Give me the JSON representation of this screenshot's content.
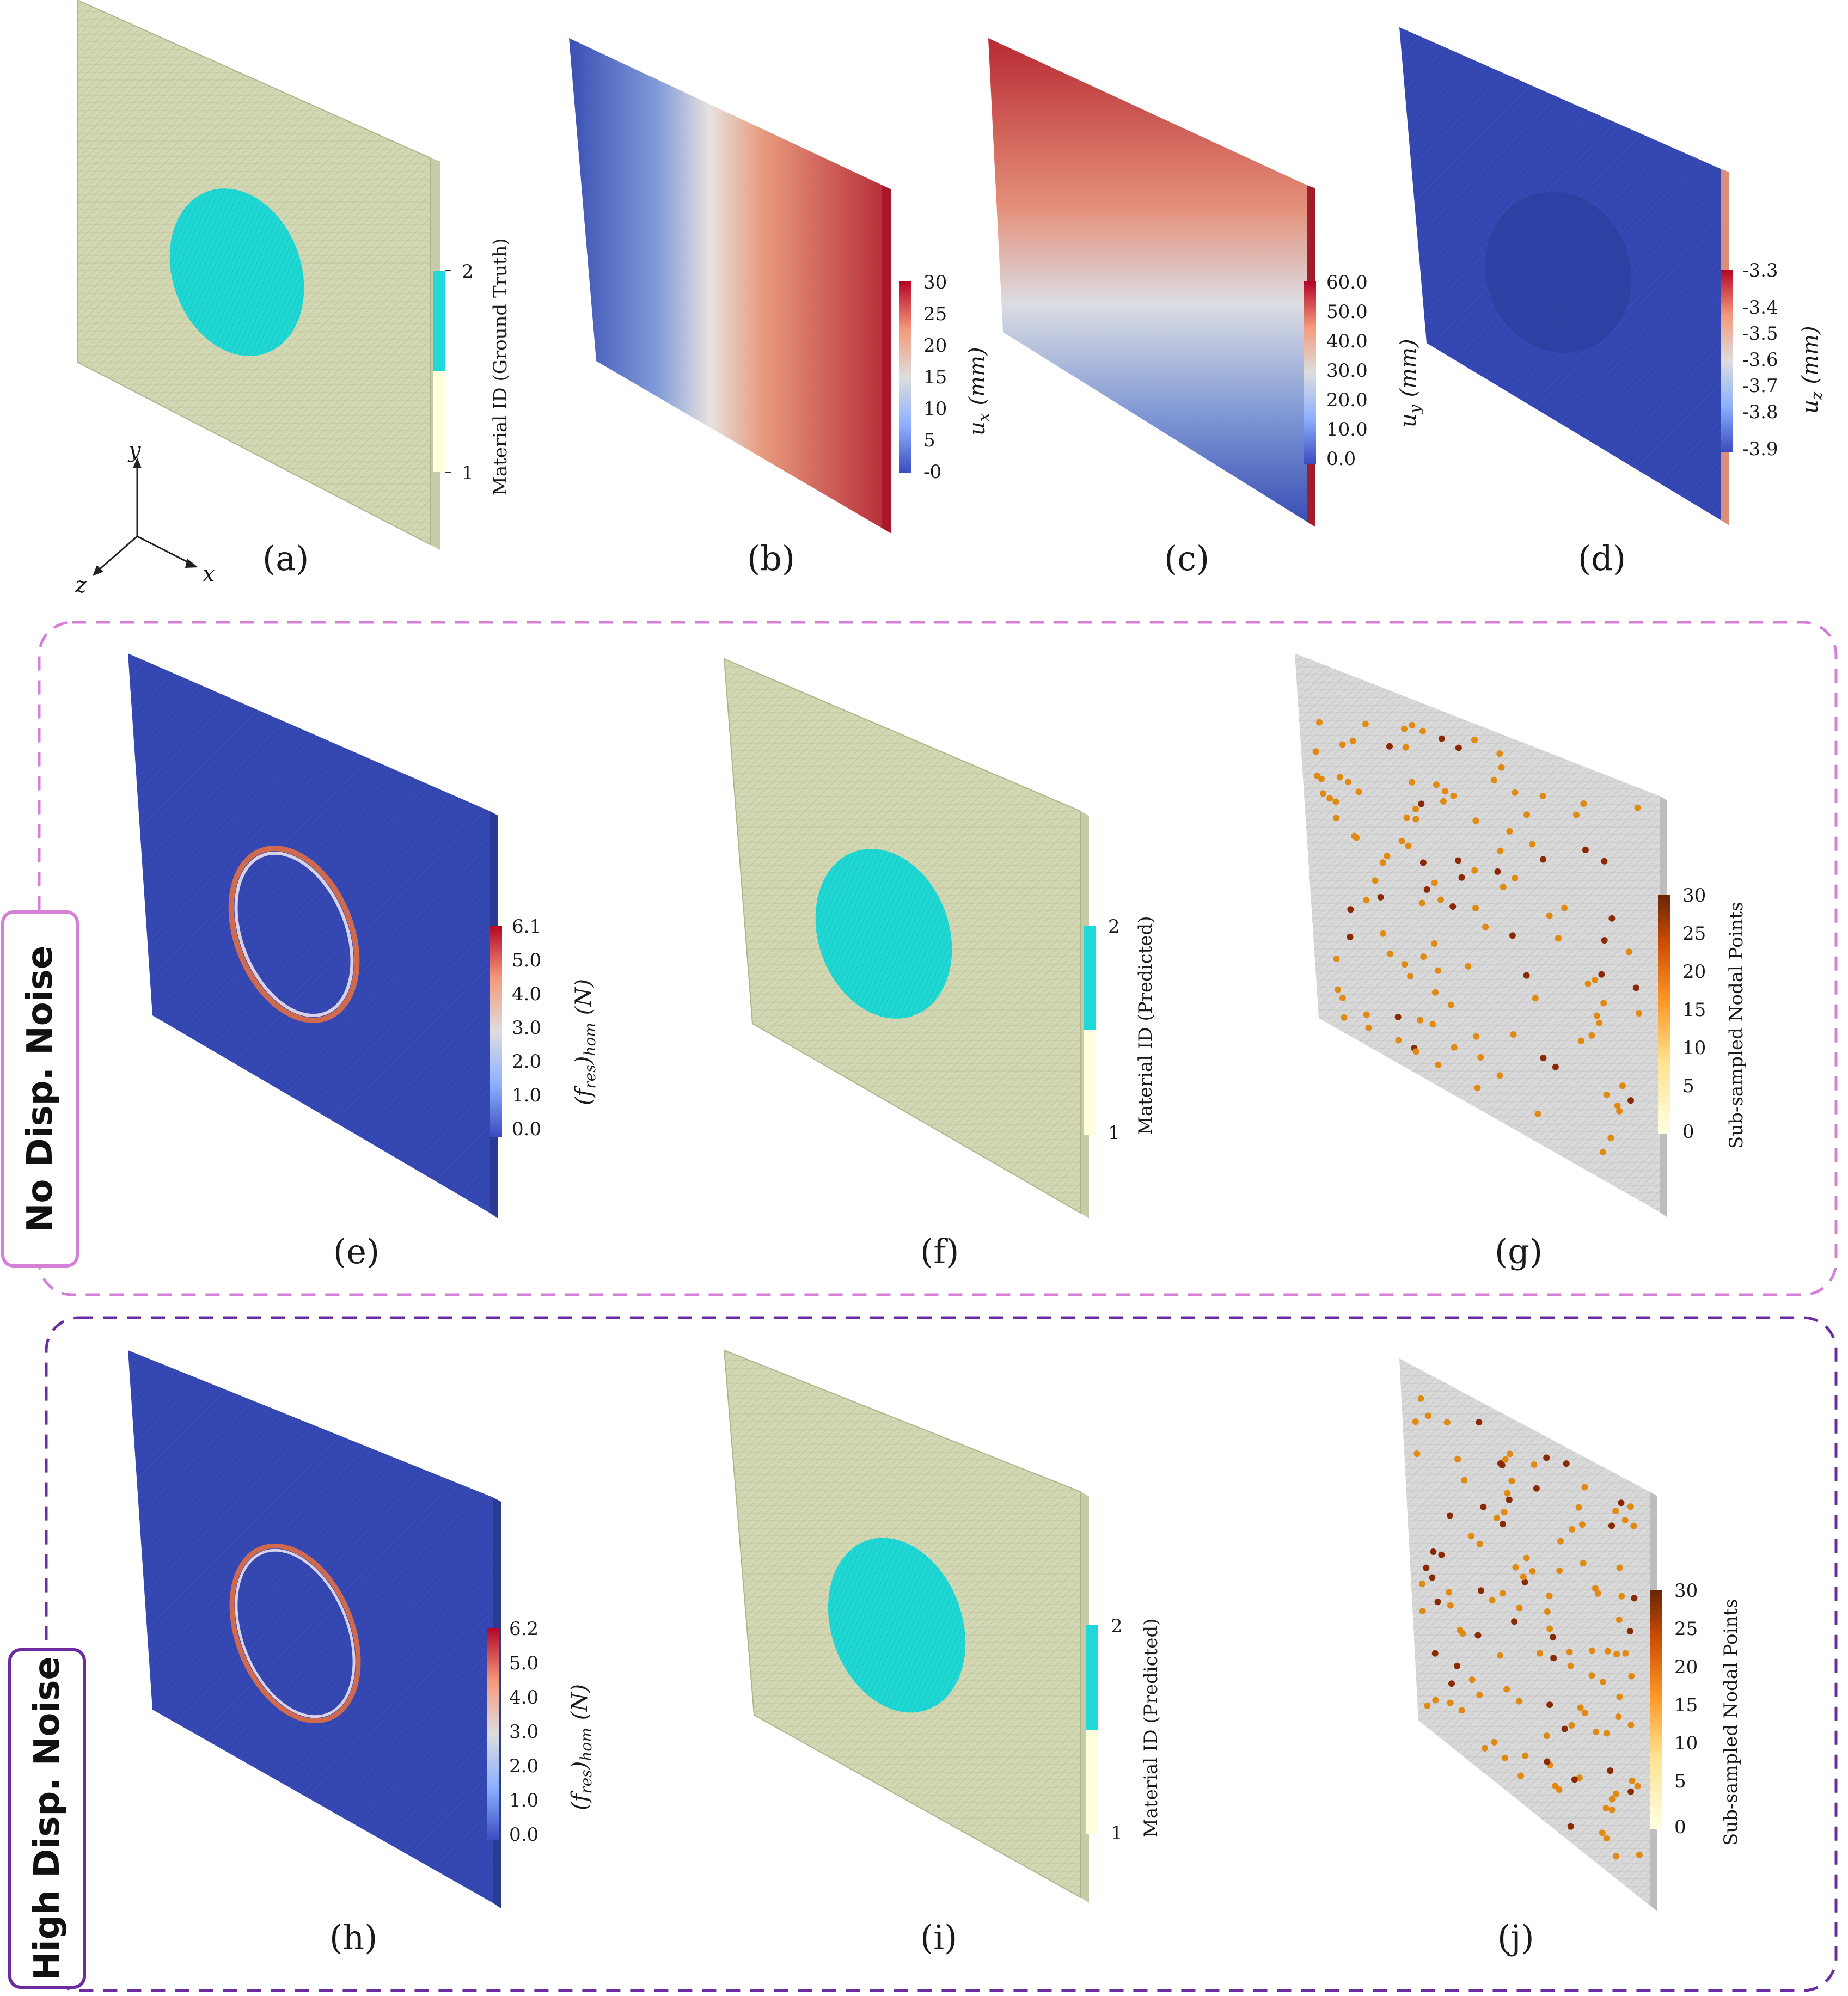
{
  "colors": {
    "mesh_green": "#d3d8b4",
    "inclusion_cyan": "#1fd8d4",
    "field_blue": "#3447b0",
    "field_red": "#b2182b",
    "field_white": "#dddddd",
    "subsample_gray": "#d9d9d9",
    "point_orange": "#e08a12",
    "group_pink": "#d67fd6",
    "group_purple": "#6a2ca0"
  },
  "axes_triad": {
    "y": "y",
    "x": "x",
    "z": "z"
  },
  "groups": {
    "no_noise": "No Disp. Noise",
    "high_noise": "High Disp. Noise"
  },
  "panels": {
    "a": {
      "caption": "(a)",
      "cbar_title": "Material ID (Ground Truth)",
      "ticks": [
        "2",
        "1"
      ]
    },
    "b": {
      "caption": "(b)",
      "cbar_title_sym": "u",
      "cbar_title_sub": "x",
      "cbar_title_unit": "(mm)",
      "ticks": [
        "30",
        "25",
        "20",
        "15",
        "10",
        "5",
        "-0"
      ]
    },
    "c": {
      "caption": "(c)",
      "cbar_title_sym": "u",
      "cbar_title_sub": "y",
      "cbar_title_unit": "(mm)",
      "ticks": [
        "60.0",
        "50.0",
        "40.0",
        "30.0",
        "20.0",
        "10.0",
        "0.0"
      ]
    },
    "d": {
      "caption": "(d)",
      "cbar_title_sym": "u",
      "cbar_title_sub": "z",
      "cbar_title_unit": "(mm)",
      "ticks": [
        "-3.3",
        "-3.4",
        "-3.5",
        "-3.6",
        "-3.7",
        "-3.8",
        "-3.9"
      ]
    },
    "e": {
      "caption": "(e)",
      "cbar_title_a": "(f",
      "cbar_title_sub1": "res",
      "cbar_title_b": ")",
      "cbar_title_sub2": "hom",
      "cbar_title_unit": "(N)",
      "ticks": [
        "6.1",
        "5.0",
        "4.0",
        "3.0",
        "2.0",
        "1.0",
        "0.0"
      ]
    },
    "f": {
      "caption": "(f)",
      "cbar_title": "Material ID (Predicted)",
      "ticks": [
        "2",
        "1"
      ]
    },
    "g": {
      "caption": "(g)",
      "cbar_title": "Sub-sampled Nodal Points",
      "ticks": [
        "30",
        "25",
        "20",
        "15",
        "10",
        "5",
        "0"
      ]
    },
    "h": {
      "caption": "(h)",
      "cbar_title_a": "(f",
      "cbar_title_sub1": "res",
      "cbar_title_b": ")",
      "cbar_title_sub2": "hom",
      "cbar_title_unit": "(N)",
      "ticks": [
        "6.2",
        "5.0",
        "4.0",
        "3.0",
        "2.0",
        "1.0",
        "0.0"
      ]
    },
    "i": {
      "caption": "(i)",
      "cbar_title": "Material ID (Predicted)",
      "ticks": [
        "2",
        "1"
      ]
    },
    "j": {
      "caption": "(j)",
      "cbar_title": "Sub-sampled Nodal Points",
      "ticks": [
        "30",
        "25",
        "20",
        "15",
        "10",
        "5",
        "0"
      ]
    }
  }
}
